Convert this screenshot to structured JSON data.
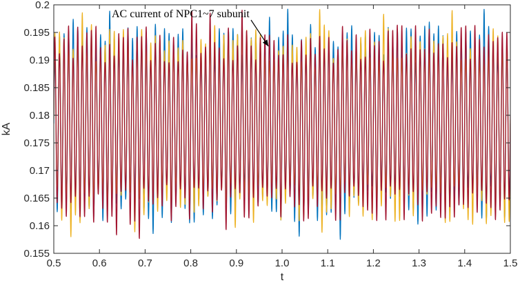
{
  "chart_data": {
    "type": "line",
    "title": "",
    "xlabel": "t",
    "ylabel": "kA",
    "xlim": [
      0.5,
      1.5
    ],
    "ylim": [
      0.155,
      0.2
    ],
    "x_ticks": [
      "0.5",
      "0.6",
      "0.7",
      "0.8",
      "0.9",
      "1.0",
      "1.1",
      "1.2",
      "1.3",
      "1.4",
      "1.5"
    ],
    "y_ticks": [
      "0.155",
      "0.16",
      "0.165",
      "0.17",
      "0.175",
      "0.18",
      "0.185",
      "0.19",
      "0.195",
      "0.2"
    ],
    "grid": false,
    "waveform": {
      "center_kA": 0.1785,
      "peak_to_peak_kA": 0.029,
      "period": 0.01,
      "series_count": 3
    },
    "series": [
      {
        "color": "#0072BD"
      },
      {
        "color": "#EDB120"
      },
      {
        "color": "#A2142F"
      }
    ],
    "annotation": {
      "text": "AC current of NPC1~7 subunit",
      "points_to": [
        0.97,
        0.1925
      ]
    }
  }
}
